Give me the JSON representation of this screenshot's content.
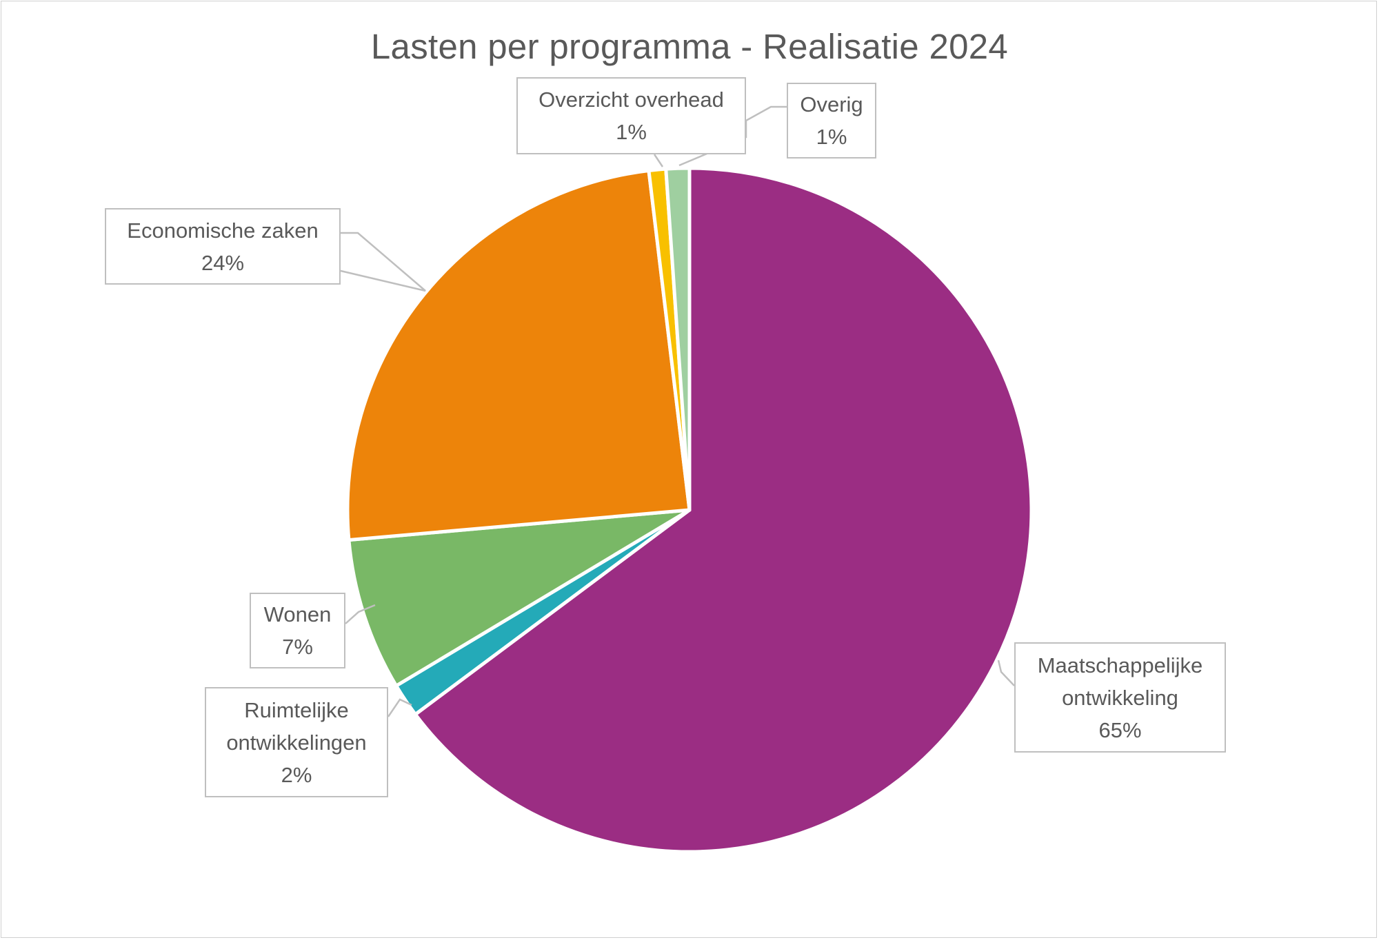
{
  "chart_data": {
    "type": "pie",
    "title": "Lasten per programma - Realisatie 2024",
    "slices": [
      {
        "label_lines": [
          "Maatschappelijke",
          "ontwikkeling"
        ],
        "pct_label": "65%",
        "value": 64.8,
        "color": "#9b2d83"
      },
      {
        "label_lines": [
          "Ruimtelijke",
          "ontwikkelingen"
        ],
        "pct_label": "2%",
        "value": 1.6,
        "color": "#24aab8"
      },
      {
        "label_lines": [
          "Wonen"
        ],
        "pct_label": "7%",
        "value": 7.2,
        "color": "#79b866"
      },
      {
        "label_lines": [
          "Economische zaken"
        ],
        "pct_label": "24%",
        "value": 24.5,
        "color": "#ed840a"
      },
      {
        "label_lines": [
          "Overzicht overhead"
        ],
        "pct_label": "1%",
        "value": 0.8,
        "color": "#f8c000"
      },
      {
        "label_lines": [
          "Overig"
        ],
        "pct_label": "1%",
        "value": 1.1,
        "color": "#9fcfa0"
      }
    ],
    "legend": "none",
    "data_labels": "callouts with category name and percentage"
  }
}
